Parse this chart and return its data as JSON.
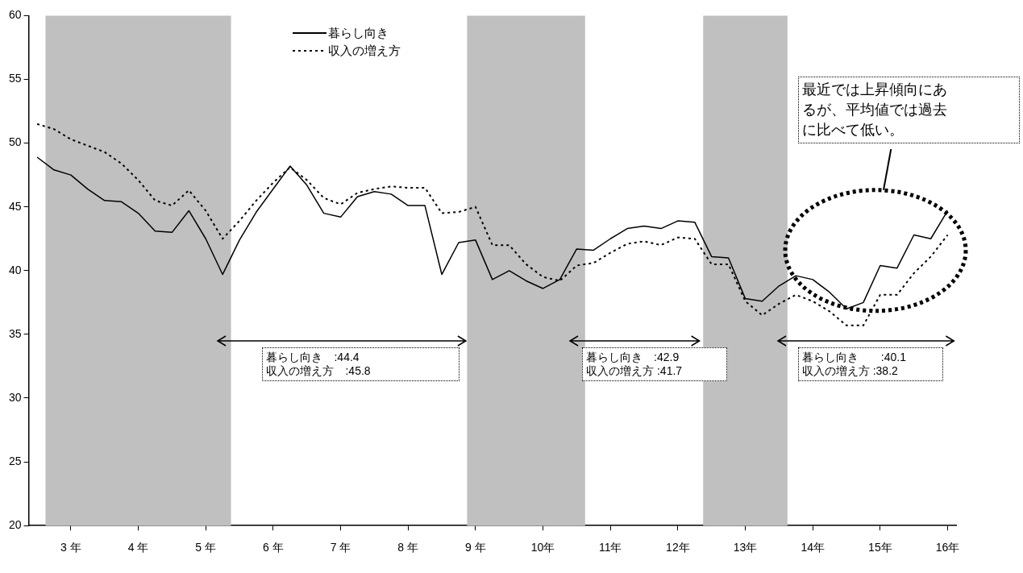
{
  "chart_data": {
    "type": "line",
    "x": [
      2.5,
      2.75,
      3,
      3.25,
      3.5,
      3.75,
      4,
      4.25,
      4.5,
      4.75,
      5,
      5.25,
      5.5,
      5.75,
      6,
      6.25,
      6.5,
      6.75,
      7,
      7.25,
      7.5,
      7.75,
      8,
      8.25,
      8.5,
      8.75,
      9,
      9.25,
      9.5,
      9.75,
      10,
      10.25,
      10.5,
      10.75,
      11,
      11.25,
      11.5,
      11.75,
      12,
      12.25,
      12.5,
      12.75,
      13,
      13.25,
      13.5,
      13.75,
      14,
      14.25,
      14.5,
      14.75,
      15,
      15.25,
      15.5,
      15.75,
      16
    ],
    "series": [
      {
        "name": "暮らし向き",
        "color": "#000000",
        "line_style": "solid",
        "values": [
          48.9,
          47.9,
          47.5,
          46.4,
          45.5,
          45.4,
          44.5,
          43.1,
          43.0,
          44.7,
          42.5,
          39.7,
          42.4,
          44.6,
          46.4,
          48.2,
          46.7,
          44.5,
          44.2,
          45.8,
          46.2,
          46.0,
          45.1,
          45.1,
          39.7,
          42.2,
          42.4,
          39.3,
          40.0,
          39.2,
          38.6,
          39.3,
          41.7,
          41.6,
          42.5,
          43.3,
          43.5,
          43.3,
          43.9,
          43.8,
          41.1,
          41.0,
          37.8,
          37.6,
          38.8,
          39.6,
          39.3,
          38.3,
          37.0,
          37.5,
          40.4,
          40.2,
          42.8,
          42.5,
          44.7
        ]
      },
      {
        "name": "収入の増え方",
        "color": "#000000",
        "line_style": "dotted",
        "values": [
          51.5,
          51.1,
          50.3,
          49.8,
          49.3,
          48.4,
          47.1,
          45.5,
          45.1,
          46.3,
          44.7,
          42.5,
          43.9,
          45.5,
          46.9,
          48.1,
          47.1,
          45.7,
          45.2,
          46.1,
          46.4,
          46.6,
          46.5,
          46.5,
          44.5,
          44.6,
          45.0,
          42.0,
          42.0,
          40.5,
          39.5,
          39.2,
          40.4,
          40.6,
          41.4,
          42.1,
          42.3,
          42.0,
          42.6,
          42.5,
          40.5,
          40.5,
          37.6,
          36.5,
          37.4,
          38.1,
          37.6,
          36.8,
          35.7,
          35.7,
          38.1,
          38.1,
          39.8,
          41.1,
          42.8
        ]
      }
    ],
    "xlim": [
      2.375,
      16.125
    ],
    "xticks": [
      {
        "value": 3,
        "label": "3 年"
      },
      {
        "value": 4,
        "label": "4 年"
      },
      {
        "value": 5,
        "label": "5 年"
      },
      {
        "value": 6,
        "label": "6 年"
      },
      {
        "value": 7,
        "label": "7 年"
      },
      {
        "value": 8,
        "label": "8 年"
      },
      {
        "value": 9,
        "label": "9 年"
      },
      {
        "value": 10,
        "label": "10年"
      },
      {
        "value": 11,
        "label": "11年"
      },
      {
        "value": 12,
        "label": "12年"
      },
      {
        "value": 13,
        "label": "13年"
      },
      {
        "value": 14,
        "label": "14年"
      },
      {
        "value": 15,
        "label": "15年"
      },
      {
        "value": 16,
        "label": "16年"
      }
    ],
    "ylim": [
      20,
      60
    ],
    "yticks": [
      20,
      25,
      30,
      35,
      40,
      45,
      50,
      55,
      60
    ],
    "grid": false,
    "legend": "top",
    "marker": "none",
    "bands": [
      {
        "axis": "x",
        "from": 2.625,
        "to": 5.375,
        "color": "#c0c0c0"
      },
      {
        "axis": "x",
        "from": 8.875,
        "to": 10.625,
        "color": "#c0c0c0"
      },
      {
        "axis": "x",
        "from": 12.375,
        "to": 13.625,
        "color": "#c0c0c0"
      }
    ],
    "annotations": [
      "暮らし向き　:44.4\n収入の増え方　:45.8",
      "暮らし向き　:42.9\n収入の増え方 :41.7",
      "暮らし向き　　:40.1\n収入の増え方 :38.2",
      "最近では上昇傾向にあるが、平均値では過去に比べて低い。"
    ]
  }
}
